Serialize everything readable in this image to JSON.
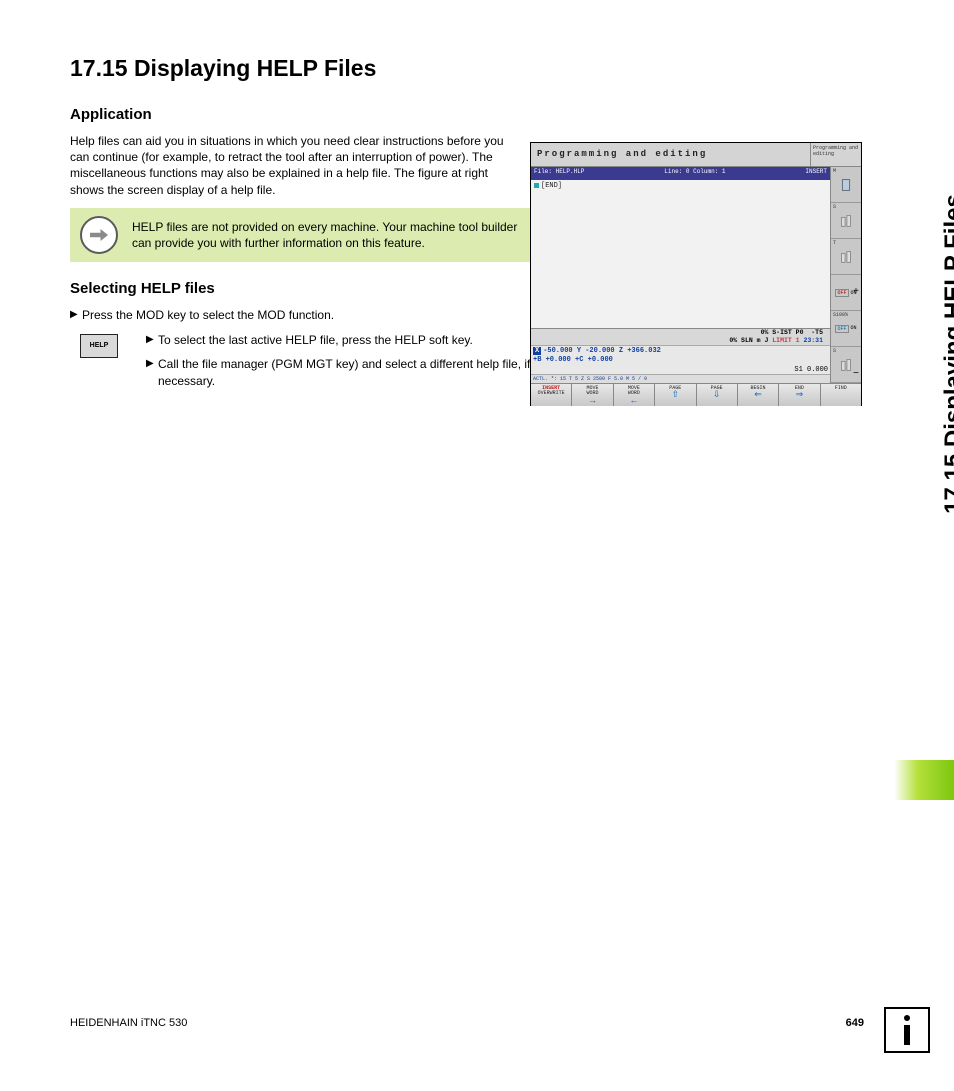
{
  "header": {
    "title": "17.15 Displaying HELP Files"
  },
  "sideTab": {
    "label": "17.15 Displaying HELP Files"
  },
  "section1": {
    "heading": "Application",
    "para": "Help files can aid you in situations in which you need clear instructions before you can continue (for example, to retract the tool after an interruption of power). The miscellaneous functions may also be explained in a help file. The figure at right shows the screen display of a help file.",
    "note": "HELP files are not provided on every machine. Your machine tool builder can provide you with further information on this feature."
  },
  "section2": {
    "heading": "Selecting HELP files",
    "step1": "Press the MOD key to select the MOD function.",
    "key": "HELP",
    "step2a": "To select the last active HELP file, press the HELP soft key.",
    "step2b": "Call the file manager (PGM MGT key) and select a different help file, if necessary."
  },
  "screenshot": {
    "title": "Programming and editing",
    "mode": "Programming\nand editing",
    "filebar_left": "File: HELP.HLP",
    "filebar_mid": "Line: 0   Column: 1",
    "filebar_right": "INSERT",
    "edit_line": "[END]",
    "status": {
      "l1_pct": "0% S-IST P0  -T5",
      "l2_pct": "0% SLN m J",
      "l2_limit": "LIMIT 1",
      "l2_time": "23:31",
      "coords_x": "-50.000",
      "coords_y": "-20.000",
      "coords_z": "+366.032",
      "coords_b": "+0.000",
      "coords_c": "+0.000",
      "s1": "S1   0.000",
      "tiny": "ACTL.     *: 15        T 5        Z S 2500      F 5.0     M 5 / 9"
    },
    "side": {
      "c1": "M",
      "c2": "S",
      "c3": "T",
      "c4_left": "OFF",
      "c4_right": "ON",
      "c5": "S100%",
      "c5_off": "OFF",
      "c5_on": "ON",
      "c6": "S"
    },
    "soft": [
      {
        "l1": "INSERT",
        "l2": "OVERWRITE",
        "red": true
      },
      {
        "l1": "MOVE",
        "l2": "WORD",
        "arrow": "→",
        "blue": true
      },
      {
        "l1": "MOVE",
        "l2": "WORD",
        "arrow": "←",
        "blue": true
      },
      {
        "l1": "PAGE",
        "arrow": "⇧",
        "blue": true
      },
      {
        "l1": "PAGE",
        "arrow": "⇩",
        "blue": true
      },
      {
        "l1": "BEGIN",
        "arrow": "⇐",
        "blue": true
      },
      {
        "l1": "END",
        "arrow": "⇒",
        "blue": true
      },
      {
        "l1": "FIND"
      }
    ]
  },
  "footer": {
    "left": "HEIDENHAIN iTNC 530",
    "page": "649"
  }
}
